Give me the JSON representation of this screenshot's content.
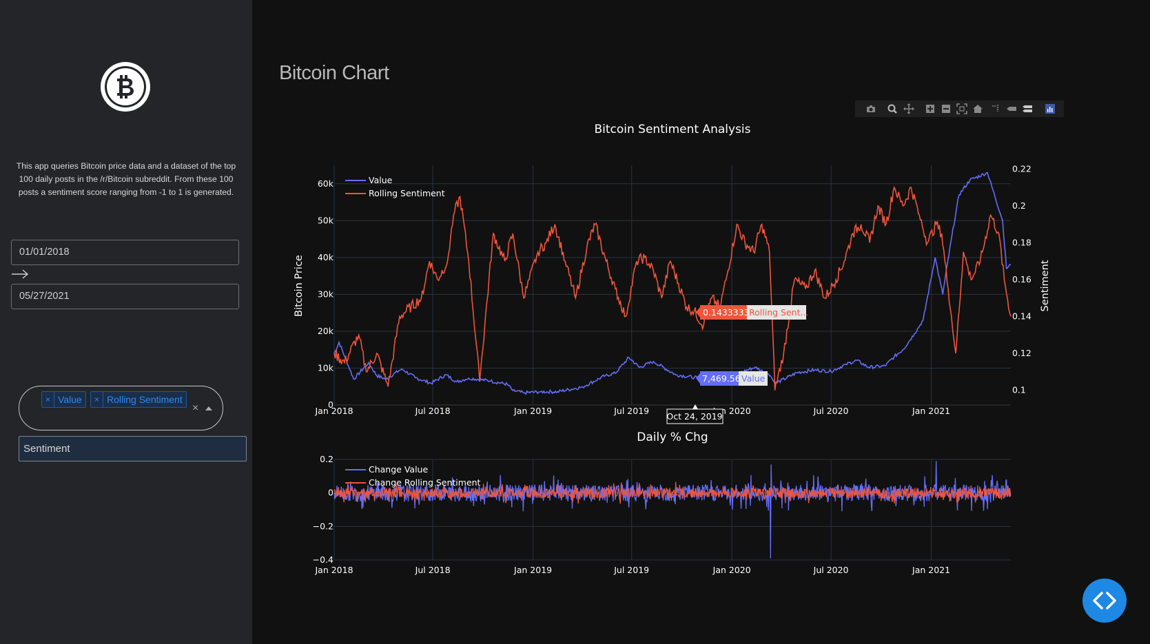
{
  "sidebar": {
    "logo_icon": "bitcoin-logo-icon",
    "description": "This app queries Bitcoin price data and a dataset of the top 100 daily posts in the /r/Bitcoin subreddit. From these 100 posts a sentiment score ranging from -1 to 1 is generated.",
    "start_date": "01/01/2018",
    "end_date": "05/27/2021",
    "date_arrow_icon": "arrow-right-icon",
    "selected_series": [
      "Value",
      "Rolling Sentiment"
    ],
    "selected_series_remove": "×",
    "clear_icon": "clear-x-icon",
    "clear_glyph": "×",
    "dropdown_icon": "caret-up-icon",
    "second_select_value": "Sentiment"
  },
  "main": {
    "title": "Bitcoin Chart"
  },
  "modebar": {
    "buttons": [
      "camera-icon",
      "zoom-icon",
      "pan-icon",
      "zoom-in-icon",
      "zoom-out-icon",
      "autoscale-icon",
      "reset-axes-icon",
      "spike-lines-icon",
      "hover-closest-icon",
      "hover-compare-icon",
      "plotly-logo-icon"
    ]
  },
  "colors": {
    "value_series": "#636efa",
    "sentiment_series": "#ef553b",
    "background": "#111111",
    "sidebar": "#242528",
    "accent": "#1e88e5"
  },
  "hover": {
    "sentiment_value": "0.1433333",
    "sentiment_label": "Rolling Sent...",
    "price_value": "7,469.56",
    "price_label": "Value",
    "date_label": "Oct 24, 2019"
  },
  "chart_data": [
    {
      "type": "line",
      "title": "Bitcoin Sentiment Analysis",
      "ylabel": "Bitcoin Price",
      "y2label": "Sentiment",
      "x_ticks": [
        "Jan 2018",
        "Jul 2018",
        "Jan 2019",
        "Jul 2019",
        "Jan 2020",
        "Jul 2020",
        "Jan 2021"
      ],
      "y_ticks": [
        "0",
        "10k",
        "20k",
        "30k",
        "40k",
        "50k",
        "60k"
      ],
      "y2_ticks": [
        "0.1",
        "0.12",
        "0.14",
        "0.16",
        "0.18",
        "0.2",
        "0.22"
      ],
      "ylim": [
        0,
        65000
      ],
      "y2lim": [
        0.092,
        0.222
      ],
      "xlim": [
        "2018-01-01",
        "2021-05-27"
      ],
      "legend": "top-left",
      "grid": true,
      "series": [
        {
          "name": "Value",
          "x": [
            "2018-01-01",
            "2018-01-10",
            "2018-02-06",
            "2018-03-05",
            "2018-03-20",
            "2018-04-06",
            "2018-05-05",
            "2018-05-30",
            "2018-06-28",
            "2018-07-25",
            "2018-08-14",
            "2018-09-05",
            "2018-10-15",
            "2018-11-15",
            "2018-11-25",
            "2018-12-15",
            "2019-01-15",
            "2019-02-15",
            "2019-04-02",
            "2019-05-14",
            "2019-06-01",
            "2019-06-26",
            "2019-07-15",
            "2019-08-10",
            "2019-09-20",
            "2019-10-24",
            "2019-11-22",
            "2019-12-17",
            "2020-01-15",
            "2020-02-13",
            "2020-03-12",
            "2020-03-20",
            "2020-04-30",
            "2020-06-01",
            "2020-07-01",
            "2020-07-28",
            "2020-08-17",
            "2020-09-08",
            "2020-10-08",
            "2020-10-25",
            "2020-11-10",
            "2020-12-01",
            "2020-12-17",
            "2021-01-08",
            "2021-01-22",
            "2021-02-08",
            "2021-02-21",
            "2021-03-13",
            "2021-04-14",
            "2021-05-12",
            "2021-05-19",
            "2021-05-27"
          ],
          "values": [
            14000,
            17000,
            7000,
            11500,
            8000,
            7000,
            9800,
            7400,
            5900,
            8200,
            6300,
            7300,
            6500,
            5600,
            3900,
            3300,
            3600,
            3600,
            4900,
            8000,
            8600,
            12900,
            10200,
            11800,
            8200,
            7470,
            7100,
            6700,
            8700,
            10300,
            7900,
            5800,
            8800,
            9500,
            9100,
            11000,
            12100,
            10200,
            10600,
            13100,
            15000,
            19300,
            23000,
            40000,
            30000,
            46000,
            57000,
            61000,
            63000,
            50000,
            37000,
            38000
          ]
        },
        {
          "name": "Rolling Sentiment",
          "x": [
            "2018-01-01",
            "2018-01-20",
            "2018-02-15",
            "2018-03-01",
            "2018-03-20",
            "2018-04-10",
            "2018-05-01",
            "2018-06-10",
            "2018-06-25",
            "2018-07-10",
            "2018-07-28",
            "2018-08-08",
            "2018-08-20",
            "2018-09-05",
            "2018-09-25",
            "2018-10-20",
            "2018-11-10",
            "2018-11-25",
            "2018-12-15",
            "2019-01-10",
            "2019-01-25",
            "2019-02-10",
            "2019-03-01",
            "2019-03-20",
            "2019-04-10",
            "2019-04-25",
            "2019-05-15",
            "2019-06-01",
            "2019-06-20",
            "2019-07-10",
            "2019-07-25",
            "2019-08-10",
            "2019-08-25",
            "2019-09-10",
            "2019-09-25",
            "2019-10-10",
            "2019-10-24",
            "2019-11-10",
            "2019-11-25",
            "2019-12-10",
            "2019-12-25",
            "2020-01-10",
            "2020-01-25",
            "2020-02-10",
            "2020-02-25",
            "2020-03-10",
            "2020-03-20",
            "2020-04-05",
            "2020-04-25",
            "2020-05-15",
            "2020-06-01",
            "2020-06-20",
            "2020-07-10",
            "2020-07-25",
            "2020-08-10",
            "2020-08-25",
            "2020-09-10",
            "2020-09-25",
            "2020-10-10",
            "2020-10-25",
            "2020-11-10",
            "2020-11-25",
            "2020-12-10",
            "2020-12-25",
            "2021-01-10",
            "2021-01-20",
            "2021-02-01",
            "2021-02-15",
            "2021-03-01",
            "2021-03-15",
            "2021-04-01",
            "2021-04-20",
            "2021-05-05",
            "2021-05-15",
            "2021-05-27"
          ],
          "values": [
            0.12,
            0.115,
            0.13,
            0.11,
            0.12,
            0.102,
            0.14,
            0.15,
            0.17,
            0.16,
            0.17,
            0.195,
            0.205,
            0.17,
            0.105,
            0.185,
            0.17,
            0.185,
            0.15,
            0.175,
            0.18,
            0.19,
            0.17,
            0.15,
            0.178,
            0.19,
            0.17,
            0.155,
            0.14,
            0.17,
            0.172,
            0.165,
            0.15,
            0.17,
            0.158,
            0.145,
            0.143,
            0.135,
            0.15,
            0.145,
            0.165,
            0.19,
            0.18,
            0.175,
            0.19,
            0.175,
            0.1,
            0.12,
            0.16,
            0.155,
            0.165,
            0.15,
            0.16,
            0.17,
            0.185,
            0.19,
            0.18,
            0.2,
            0.19,
            0.21,
            0.2,
            0.21,
            0.195,
            0.18,
            0.19,
            0.185,
            0.155,
            0.12,
            0.175,
            0.16,
            0.17,
            0.195,
            0.185,
            0.16,
            0.14
          ]
        }
      ]
    },
    {
      "type": "line",
      "title": "Daily % Chg",
      "x_ticks": [
        "Jan 2018",
        "Jul 2018",
        "Jan 2019",
        "Jul 2019",
        "Jan 2020",
        "Jul 2020",
        "Jan 2021"
      ],
      "y_ticks": [
        "−0.4",
        "−0.2",
        "0",
        "0.2"
      ],
      "ylim": [
        -0.4,
        0.2
      ],
      "legend": "top-left",
      "grid": true,
      "series": [
        {
          "name": "Change Value",
          "amplitude": 0.05,
          "spikes": [
            {
              "x": "2020-03-12",
              "value": -0.39
            },
            {
              "x": "2021-01-10",
              "value": 0.19
            },
            {
              "x": "2020-03-13",
              "value": 0.17
            }
          ]
        },
        {
          "name": "Change Rolling Sentiment",
          "amplitude": 0.03
        }
      ]
    }
  ]
}
